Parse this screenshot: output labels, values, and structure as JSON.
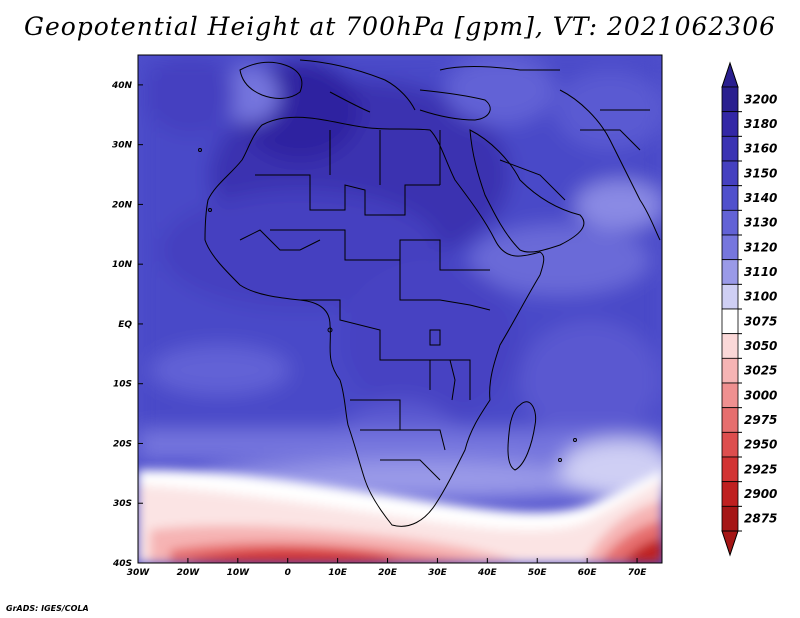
{
  "title": "Geopotential Height at 700hPa [gpm], VT: 2021062306",
  "credit": "GrADS: IGES/COLA",
  "lon_ticks": [
    "30W",
    "20W",
    "10W",
    "0",
    "10E",
    "20E",
    "30E",
    "40E",
    "50E",
    "60E",
    "70E"
  ],
  "lat_ticks": [
    "40N",
    "30N",
    "20N",
    "10N",
    "EQ",
    "10S",
    "20S",
    "30S",
    "40S"
  ],
  "colorbar": {
    "levels": [
      "3200",
      "3180",
      "3160",
      "3150",
      "3140",
      "3130",
      "3120",
      "3110",
      "3100",
      "3075",
      "3050",
      "3025",
      "3000",
      "2975",
      "2950",
      "2925",
      "2900",
      "2875"
    ],
    "colors": [
      "#2a1f8f",
      "#3327a6",
      "#3b33b3",
      "#4540c0",
      "#5050cc",
      "#6262d6",
      "#7676de",
      "#9a9ae8",
      "#cfcff4",
      "#ffffff",
      "#fbd8d8",
      "#f6b4b4",
      "#ef9090",
      "#e66e6e",
      "#dd4e4e",
      "#d23333",
      "#bf2020",
      "#a51616"
    ],
    "top_arrow_color": "#2a1f8f",
    "bottom_arrow_color": "#a51616"
  },
  "map": {
    "extent_lon": [
      -30,
      75
    ],
    "extent_lat": [
      -40,
      45
    ]
  }
}
